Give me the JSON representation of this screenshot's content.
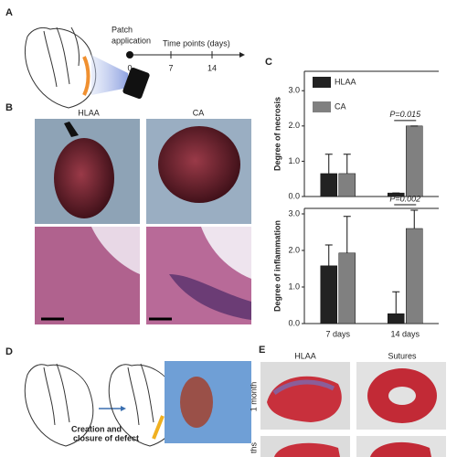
{
  "panel_a": {
    "letter": "A",
    "patch_line_1": "Patch",
    "patch_line_2": "application",
    "timeline_label": "Time points (days)",
    "time_points": [
      0,
      7,
      14
    ]
  },
  "panel_b": {
    "letter": "B",
    "columns": [
      "HLAA",
      "CA"
    ]
  },
  "panel_c": {
    "letter": "C"
  },
  "chart_data": [
    {
      "type": "bar",
      "y_label": "Degree of necrosis",
      "categories": [
        "7 days",
        "14 days"
      ],
      "series": [
        {
          "name": "HLAA",
          "color": "#222222",
          "values": [
            0.65,
            0.1
          ],
          "errors": [
            0.55,
            0
          ]
        },
        {
          "name": "CA",
          "color": "#808080",
          "values": [
            0.65,
            2.0
          ],
          "errors": [
            0.55,
            0
          ]
        }
      ],
      "ylim": [
        0,
        3.55
      ],
      "yticks": [
        {
          "value": 0,
          "label": "0.0"
        },
        {
          "value": 1,
          "label": "1.0"
        },
        {
          "value": 2,
          "label": "2.0"
        },
        {
          "value": 3,
          "label": "3.0"
        }
      ],
      "annotation": "P=0.015"
    },
    {
      "type": "bar",
      "y_label": "Degree of inflammation",
      "categories": [
        "7 days",
        "14 days"
      ],
      "series": [
        {
          "color": "#222222",
          "values": [
            1.58,
            0.27
          ],
          "errors": [
            0.57,
            0.6
          ]
        },
        {
          "color": "#808080",
          "values": [
            1.93,
            2.6
          ],
          "errors": [
            1.0,
            0.5
          ]
        }
      ],
      "ylim": [
        0,
        3.15
      ],
      "yticks": [
        {
          "value": 0,
          "label": "0.0"
        },
        {
          "value": 1,
          "label": "1.0"
        },
        {
          "value": 2,
          "label": "2.0"
        },
        {
          "value": 3,
          "label": "3.0"
        }
      ],
      "annotation": "P=0.002"
    }
  ],
  "panel_d": {
    "letter": "D",
    "caption_line_1": "Creation and",
    "caption_line_2": "closure of defect"
  },
  "panel_e": {
    "letter": "E",
    "columns": [
      "HLAA",
      "Sutures"
    ],
    "rows": [
      "1 month",
      "ths"
    ]
  }
}
